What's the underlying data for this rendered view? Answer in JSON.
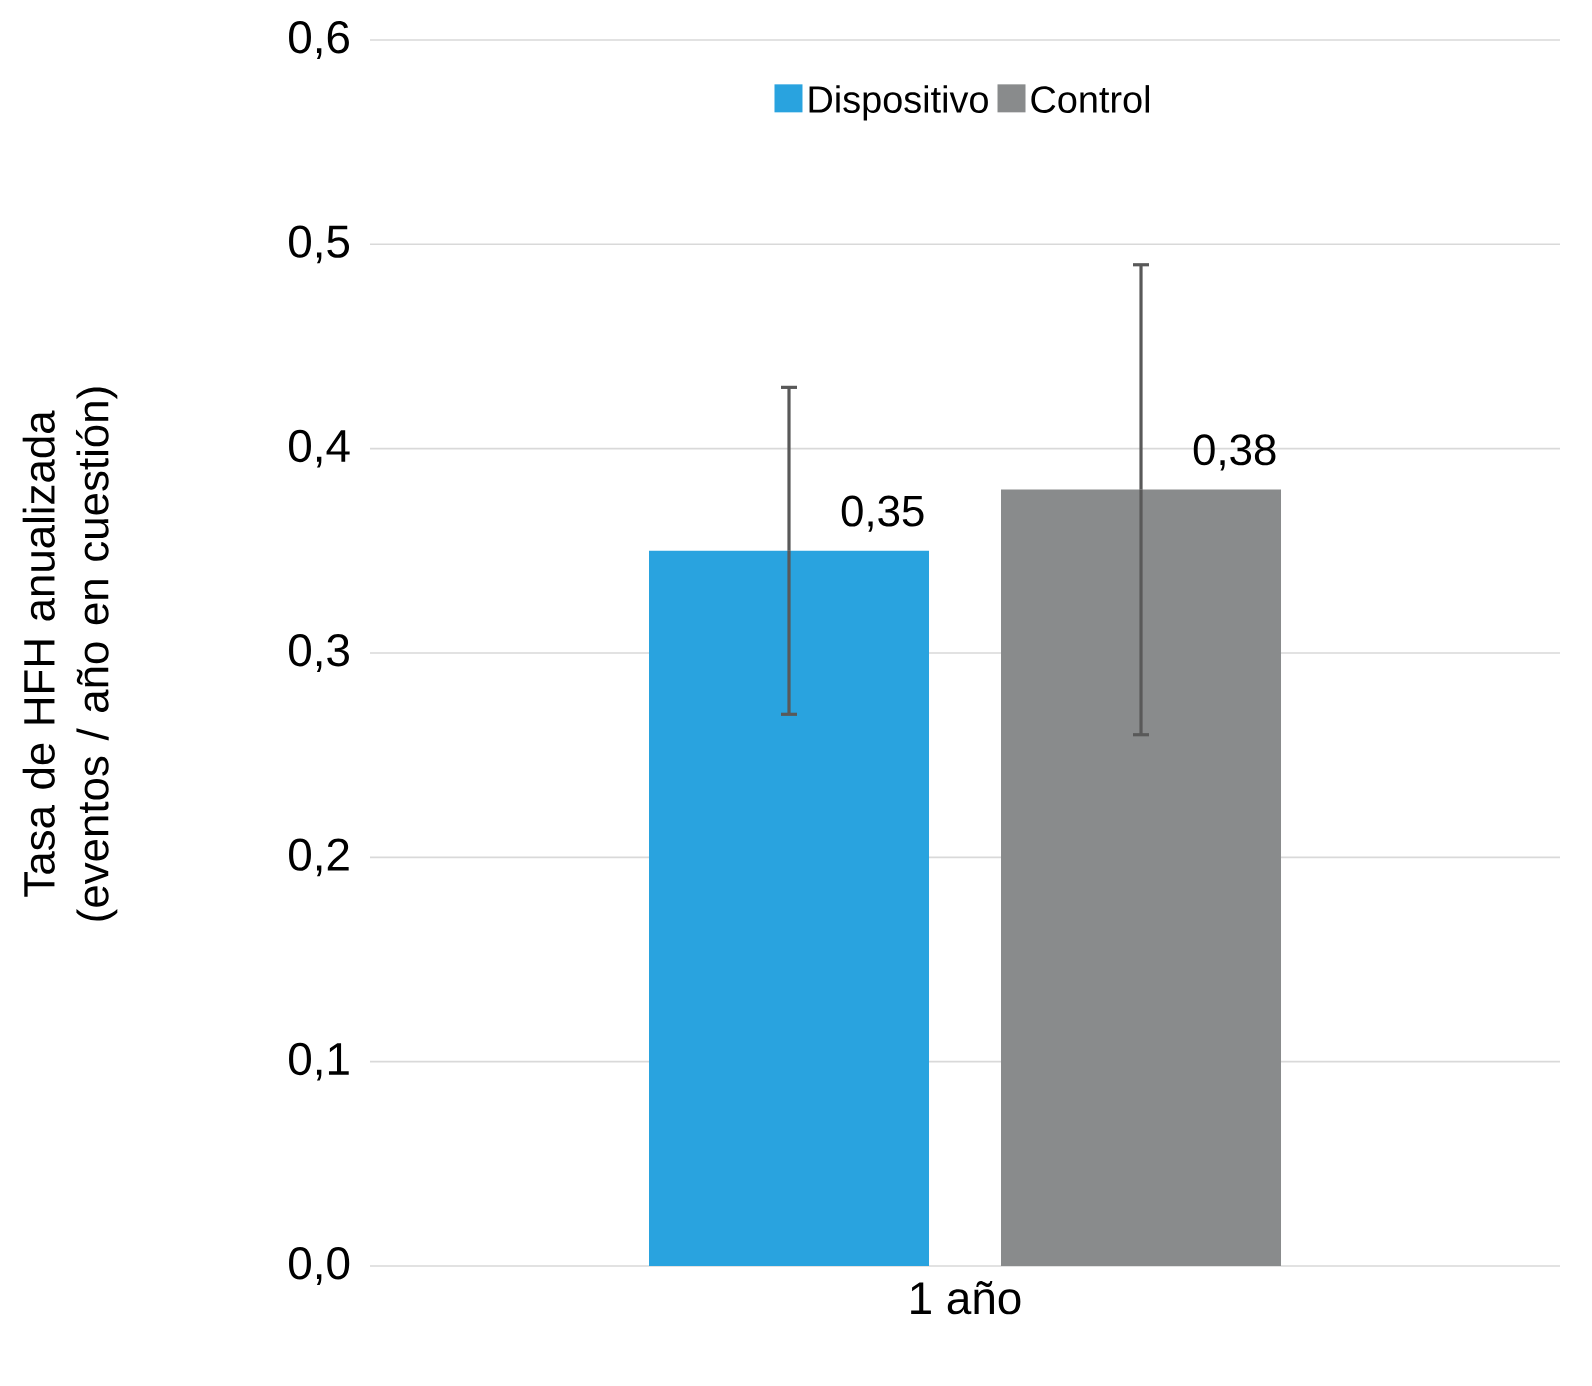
{
  "chart_data": {
    "type": "bar",
    "ylabel": "Tasa de HFH anualizada (eventos / año en cuestión)",
    "categories": [
      "1 año"
    ],
    "series": [
      {
        "name": "Dispositivo",
        "color": "#29a3df",
        "values": [
          0.35
        ],
        "errors": [
          [
            0.27,
            0.43
          ]
        ],
        "value_labels": [
          "0,35"
        ]
      },
      {
        "name": "Control",
        "color": "#898b8c",
        "values": [
          0.38
        ],
        "errors": [
          [
            0.26,
            0.49
          ]
        ],
        "value_labels": [
          "0,38"
        ]
      }
    ],
    "ylim": [
      0,
      0.6
    ],
    "yticks": [
      {
        "value": 0,
        "label": "0,0"
      },
      {
        "value": 0.1,
        "label": "0,1"
      },
      {
        "value": 0.2,
        "label": "0,2"
      },
      {
        "value": 0.3,
        "label": "0,3"
      },
      {
        "value": 0.4,
        "label": "0,4"
      },
      {
        "value": 0.5,
        "label": "0,5"
      },
      {
        "value": 0.6,
        "label": "0,6"
      }
    ],
    "grid": "y",
    "legend": "top"
  }
}
